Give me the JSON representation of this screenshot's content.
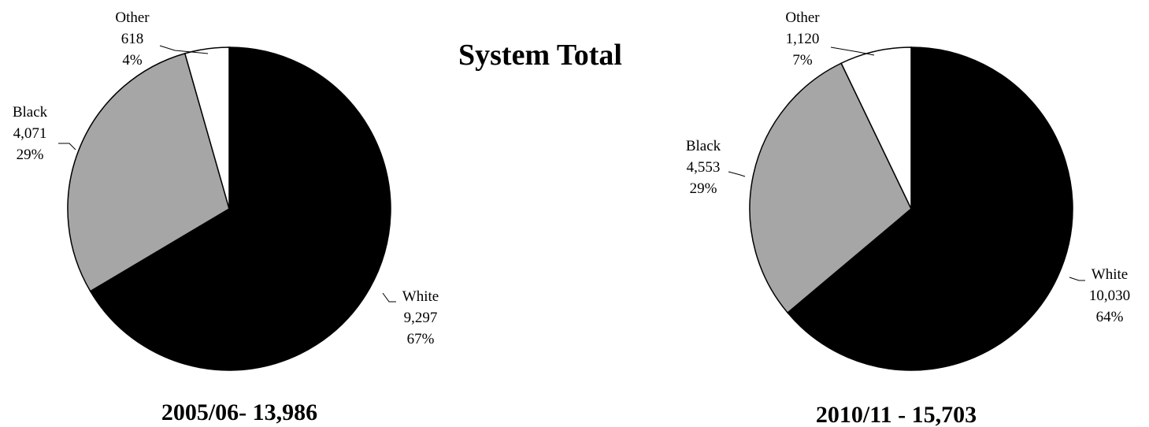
{
  "title": "System Total",
  "chart_data": [
    {
      "type": "pie",
      "caption": "2005/06- 13,986",
      "slices": [
        {
          "label": "White",
          "value": 9297,
          "value_text": "9,297",
          "percent_text": "67%",
          "color": "#000000"
        },
        {
          "label": "Black",
          "value": 4071,
          "value_text": "4,071",
          "percent_text": "29%",
          "color": "#a6a6a6"
        },
        {
          "label": "Other",
          "value": 618,
          "value_text": "618",
          "percent_text": "4%",
          "color": "#ffffff"
        }
      ]
    },
    {
      "type": "pie",
      "caption": "2010/11 - 15,703",
      "slices": [
        {
          "label": "White",
          "value": 10030,
          "value_text": "10,030",
          "percent_text": "64%",
          "color": "#000000"
        },
        {
          "label": "Black",
          "value": 4553,
          "value_text": "4,553",
          "percent_text": "29%",
          "color": "#a6a6a6"
        },
        {
          "label": "Other",
          "value": 1120,
          "value_text": "1,120",
          "percent_text": "7%",
          "color": "#ffffff"
        }
      ]
    }
  ]
}
